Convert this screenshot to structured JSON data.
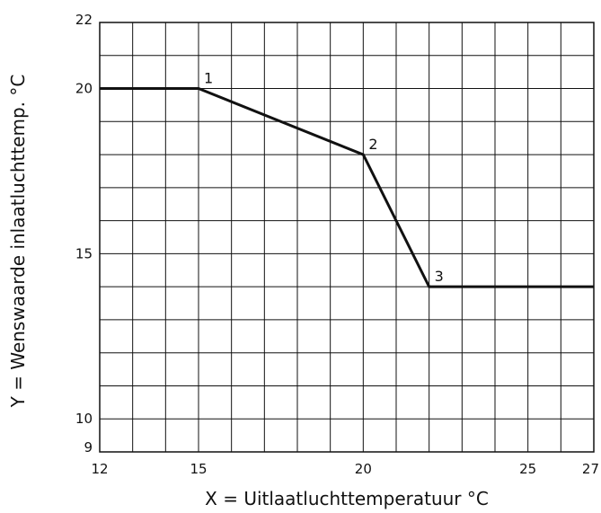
{
  "chart_data": {
    "type": "line",
    "xlabel": "X = Uitlaatluchttemperatuur °C",
    "ylabel": "Y = Wenswaarde inlaatluchttemp.  °C",
    "xlim": [
      12,
      27
    ],
    "ylim": [
      9,
      22
    ],
    "xticks": [
      12,
      15,
      20,
      25,
      27
    ],
    "yticks": [
      9,
      10,
      15,
      20,
      22
    ],
    "grid": true,
    "grid_step": 1,
    "series": [
      {
        "x": [
          12,
          15,
          20,
          22,
          27
        ],
        "y": [
          20,
          20,
          18,
          14,
          14
        ]
      }
    ],
    "annotations": [
      {
        "text": "1",
        "x": 15,
        "y": 20
      },
      {
        "text": "2",
        "x": 20,
        "y": 18
      },
      {
        "text": "3",
        "x": 22,
        "y": 14
      }
    ]
  }
}
